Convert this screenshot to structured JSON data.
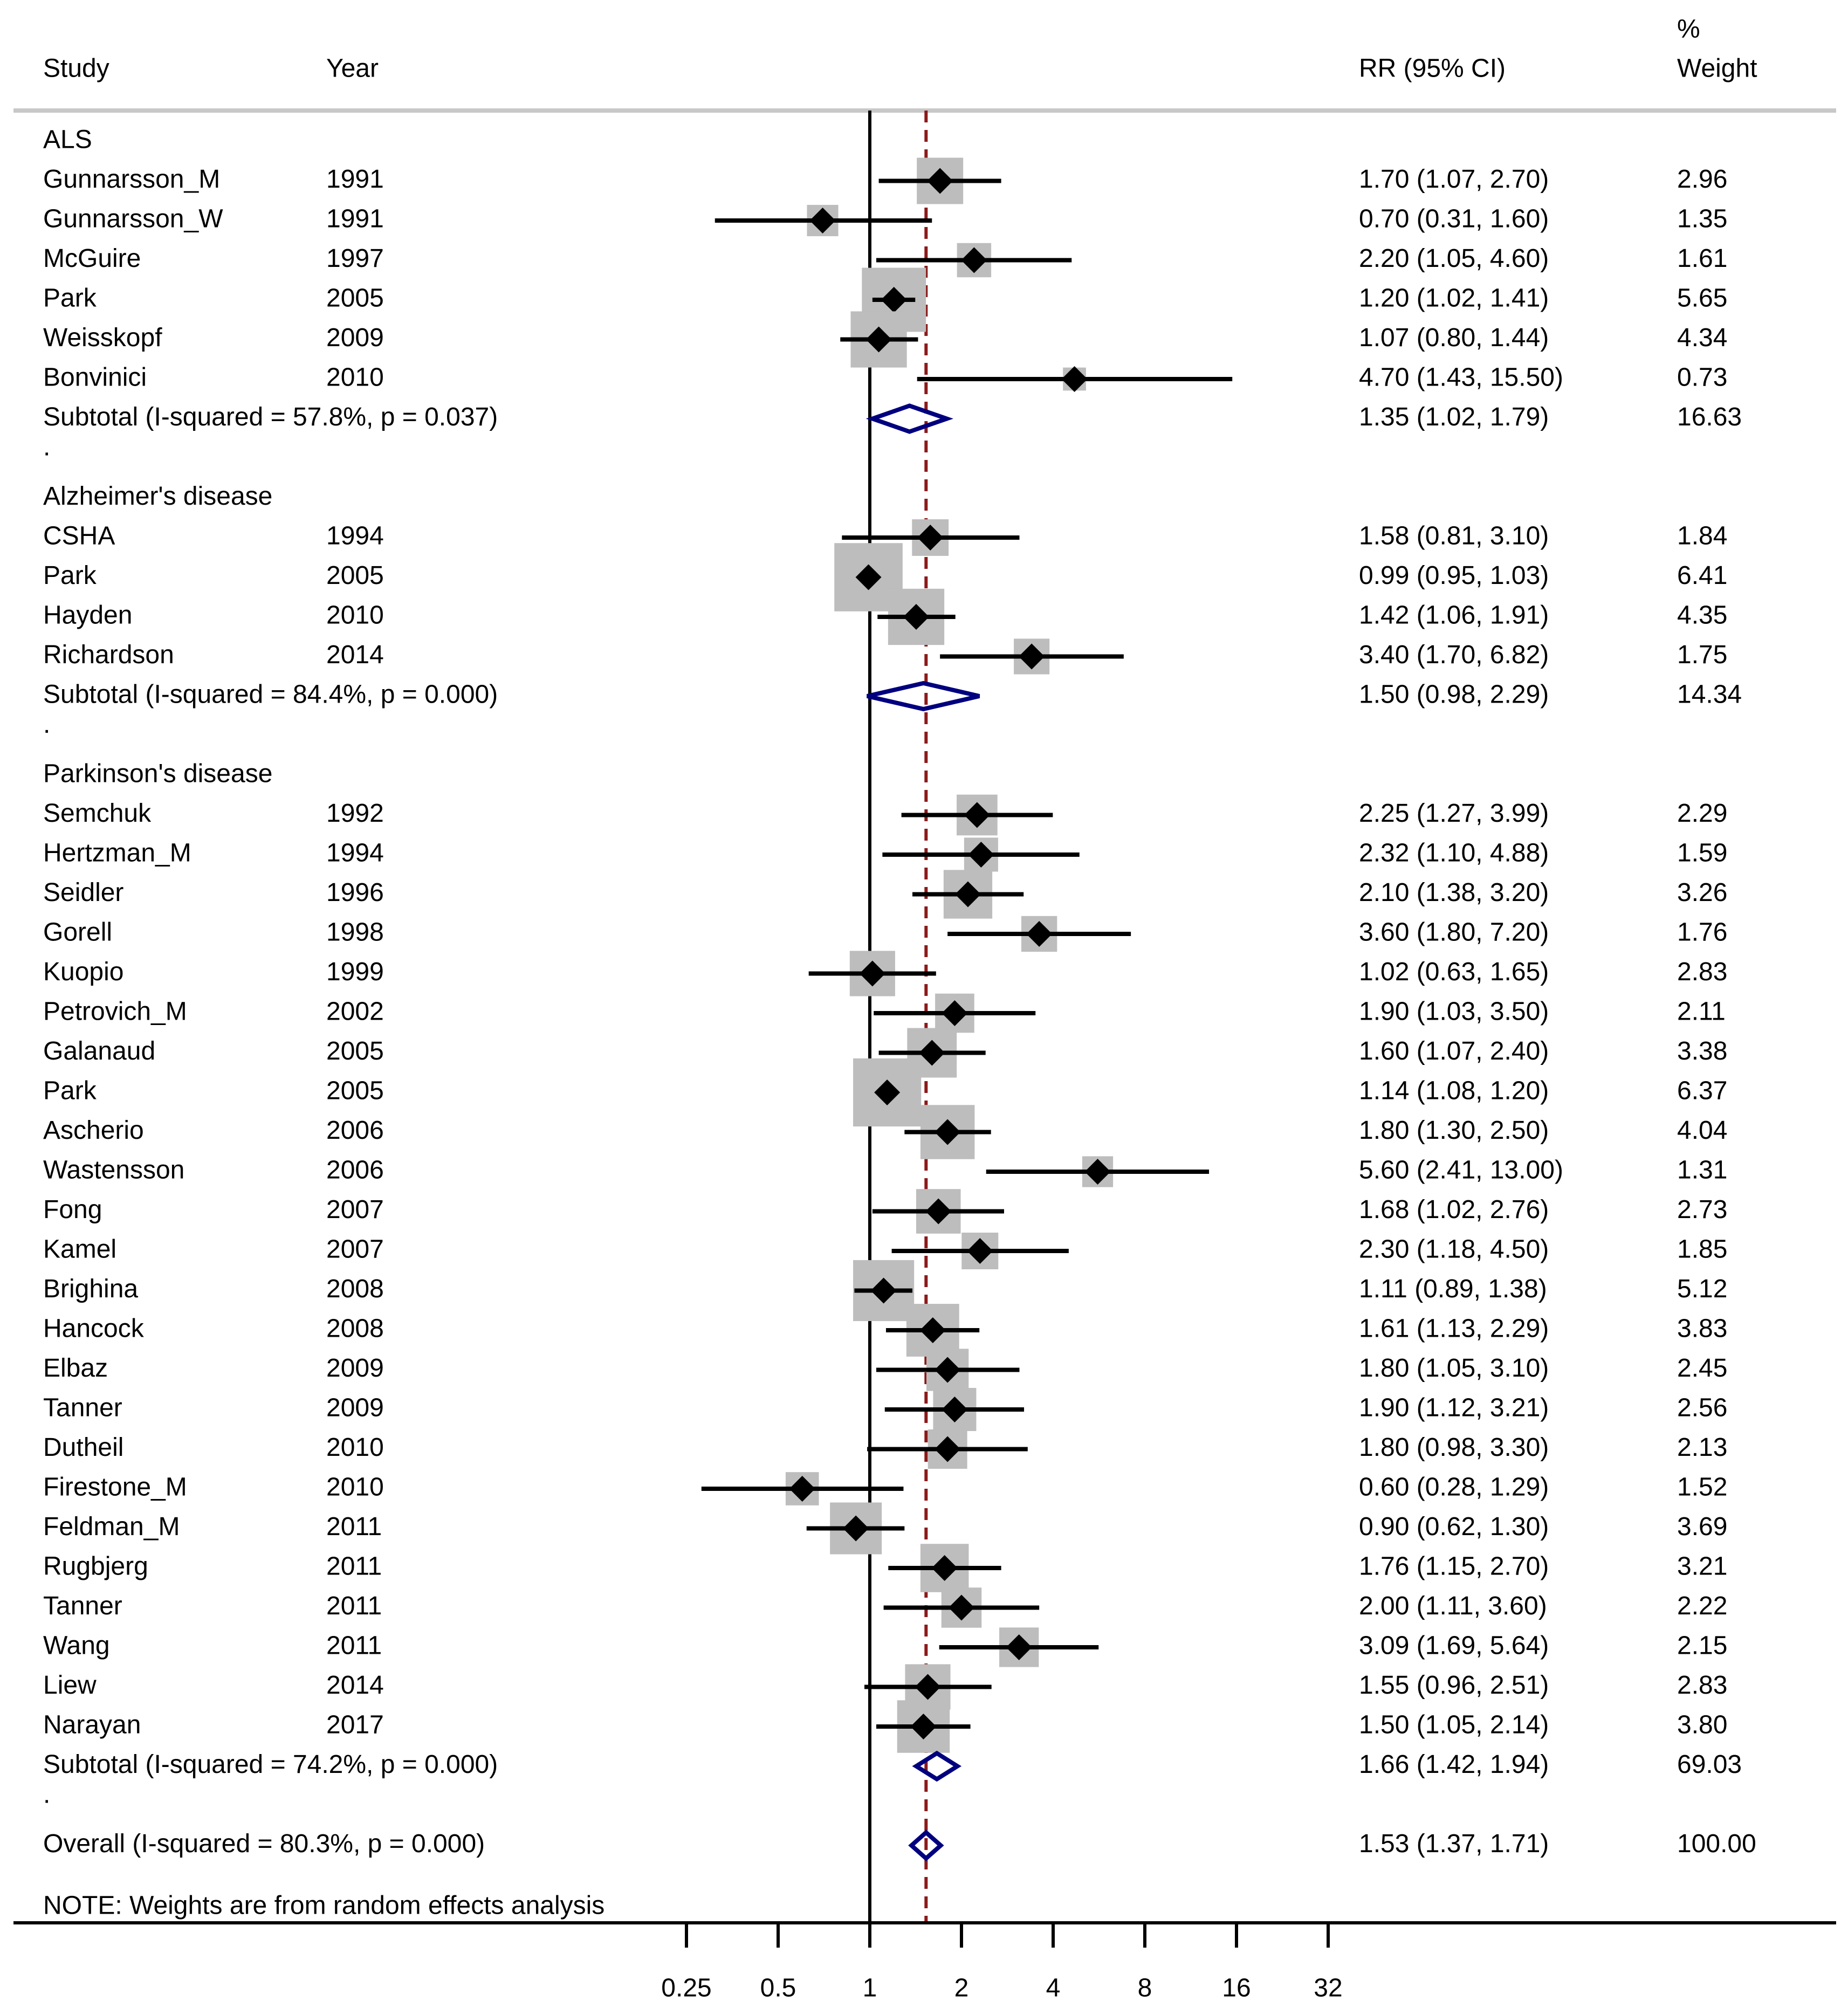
{
  "chart_data": {
    "type": "forest",
    "x_scale": "log2",
    "x_ticks": [
      0.25,
      0.5,
      1,
      2,
      4,
      8,
      16,
      32
    ],
    "x_tick_labels": [
      "0.25",
      "0.5",
      "1",
      "2",
      "4",
      "8",
      "16",
      "32"
    ],
    "null_line": 1,
    "overall_line": 1.53,
    "headers": {
      "study": "Study",
      "year": "Year",
      "rr": "RR (95% CI)",
      "weight_top": "%",
      "weight_bottom": "Weight"
    },
    "rows": [
      {
        "kind": "group",
        "label": "ALS"
      },
      {
        "kind": "study",
        "study": "Gunnarsson_M",
        "year": "1991",
        "rr": 1.7,
        "lo": 1.07,
        "hi": 2.7,
        "ci_text": "1.70 (1.07, 2.70)",
        "weight": 2.96,
        "weight_text": "2.96"
      },
      {
        "kind": "study",
        "study": "Gunnarsson_W",
        "year": "1991",
        "rr": 0.7,
        "lo": 0.31,
        "hi": 1.6,
        "ci_text": "0.70 (0.31, 1.60)",
        "weight": 1.35,
        "weight_text": "1.35"
      },
      {
        "kind": "study",
        "study": "McGuire",
        "year": "1997",
        "rr": 2.2,
        "lo": 1.05,
        "hi": 4.6,
        "ci_text": "2.20 (1.05, 4.60)",
        "weight": 1.61,
        "weight_text": "1.61"
      },
      {
        "kind": "study",
        "study": "Park",
        "year": "2005",
        "rr": 1.2,
        "lo": 1.02,
        "hi": 1.41,
        "ci_text": "1.20 (1.02, 1.41)",
        "weight": 5.65,
        "weight_text": "5.65"
      },
      {
        "kind": "study",
        "study": "Weisskopf",
        "year": "2009",
        "rr": 1.07,
        "lo": 0.8,
        "hi": 1.44,
        "ci_text": "1.07 (0.80, 1.44)",
        "weight": 4.34,
        "weight_text": "4.34"
      },
      {
        "kind": "study",
        "study": "Bonvinici",
        "year": "2010",
        "rr": 4.7,
        "lo": 1.43,
        "hi": 15.5,
        "ci_text": "4.70 (1.43, 15.50)",
        "weight": 0.73,
        "weight_text": "0.73"
      },
      {
        "kind": "subtotal",
        "study": "Subtotal  (I-squared = 57.8%, p = 0.037)",
        "rr": 1.35,
        "lo": 1.02,
        "hi": 1.79,
        "ci_text": "1.35 (1.02, 1.79)",
        "weight_text": "16.63"
      },
      {
        "kind": "spacer",
        "label": "."
      },
      {
        "kind": "group",
        "label": "Alzheimer's disease"
      },
      {
        "kind": "study",
        "study": "CSHA",
        "year": "1994",
        "rr": 1.58,
        "lo": 0.81,
        "hi": 3.1,
        "ci_text": "1.58 (0.81, 3.10)",
        "weight": 1.84,
        "weight_text": "1.84"
      },
      {
        "kind": "study",
        "study": "Park",
        "year": "2005",
        "rr": 0.99,
        "lo": 0.95,
        "hi": 1.03,
        "ci_text": "0.99 (0.95, 1.03)",
        "weight": 6.41,
        "weight_text": "6.41"
      },
      {
        "kind": "study",
        "study": "Hayden",
        "year": "2010",
        "rr": 1.42,
        "lo": 1.06,
        "hi": 1.91,
        "ci_text": "1.42 (1.06, 1.91)",
        "weight": 4.35,
        "weight_text": "4.35"
      },
      {
        "kind": "study",
        "study": "Richardson",
        "year": "2014",
        "rr": 3.4,
        "lo": 1.7,
        "hi": 6.82,
        "ci_text": "3.40 (1.70, 6.82)",
        "weight": 1.75,
        "weight_text": "1.75"
      },
      {
        "kind": "subtotal",
        "study": "Subtotal  (I-squared = 84.4%, p = 0.000)",
        "rr": 1.5,
        "lo": 0.98,
        "hi": 2.29,
        "ci_text": "1.50 (0.98, 2.29)",
        "weight_text": "14.34"
      },
      {
        "kind": "spacer",
        "label": "."
      },
      {
        "kind": "group",
        "label": "Parkinson's disease"
      },
      {
        "kind": "study",
        "study": "Semchuk",
        "year": "1992",
        "rr": 2.25,
        "lo": 1.27,
        "hi": 3.99,
        "ci_text": "2.25 (1.27, 3.99)",
        "weight": 2.29,
        "weight_text": "2.29"
      },
      {
        "kind": "study",
        "study": "Hertzman_M",
        "year": "1994",
        "rr": 2.32,
        "lo": 1.1,
        "hi": 4.88,
        "ci_text": "2.32 (1.10, 4.88)",
        "weight": 1.59,
        "weight_text": "1.59"
      },
      {
        "kind": "study",
        "study": "Seidler",
        "year": "1996",
        "rr": 2.1,
        "lo": 1.38,
        "hi": 3.2,
        "ci_text": "2.10 (1.38, 3.20)",
        "weight": 3.26,
        "weight_text": "3.26"
      },
      {
        "kind": "study",
        "study": "Gorell",
        "year": "1998",
        "rr": 3.6,
        "lo": 1.8,
        "hi": 7.2,
        "ci_text": "3.60 (1.80, 7.20)",
        "weight": 1.76,
        "weight_text": "1.76"
      },
      {
        "kind": "study",
        "study": "Kuopio",
        "year": "1999",
        "rr": 1.02,
        "lo": 0.63,
        "hi": 1.65,
        "ci_text": "1.02 (0.63, 1.65)",
        "weight": 2.83,
        "weight_text": "2.83"
      },
      {
        "kind": "study",
        "study": "Petrovich_M",
        "year": "2002",
        "rr": 1.9,
        "lo": 1.03,
        "hi": 3.5,
        "ci_text": "1.90 (1.03, 3.50)",
        "weight": 2.11,
        "weight_text": "2.11"
      },
      {
        "kind": "study",
        "study": "Galanaud",
        "year": "2005",
        "rr": 1.6,
        "lo": 1.07,
        "hi": 2.4,
        "ci_text": "1.60 (1.07, 2.40)",
        "weight": 3.38,
        "weight_text": "3.38"
      },
      {
        "kind": "study",
        "study": "Park",
        "year": "2005",
        "rr": 1.14,
        "lo": 1.08,
        "hi": 1.2,
        "ci_text": "1.14 (1.08, 1.20)",
        "weight": 6.37,
        "weight_text": "6.37"
      },
      {
        "kind": "study",
        "study": "Ascherio",
        "year": "2006",
        "rr": 1.8,
        "lo": 1.3,
        "hi": 2.5,
        "ci_text": "1.80 (1.30, 2.50)",
        "weight": 4.04,
        "weight_text": "4.04"
      },
      {
        "kind": "study",
        "study": "Wastensson",
        "year": "2006",
        "rr": 5.6,
        "lo": 2.41,
        "hi": 13.0,
        "ci_text": "5.60 (2.41, 13.00)",
        "weight": 1.31,
        "weight_text": "1.31"
      },
      {
        "kind": "study",
        "study": "Fong",
        "year": "2007",
        "rr": 1.68,
        "lo": 1.02,
        "hi": 2.76,
        "ci_text": "1.68 (1.02, 2.76)",
        "weight": 2.73,
        "weight_text": "2.73"
      },
      {
        "kind": "study",
        "study": "Kamel",
        "year": "2007",
        "rr": 2.3,
        "lo": 1.18,
        "hi": 4.5,
        "ci_text": "2.30 (1.18, 4.50)",
        "weight": 1.85,
        "weight_text": "1.85"
      },
      {
        "kind": "study",
        "study": "Brighina",
        "year": "2008",
        "rr": 1.11,
        "lo": 0.89,
        "hi": 1.38,
        "ci_text": "1.11 (0.89, 1.38)",
        "weight": 5.12,
        "weight_text": "5.12"
      },
      {
        "kind": "study",
        "study": "Hancock",
        "year": "2008",
        "rr": 1.61,
        "lo": 1.13,
        "hi": 2.29,
        "ci_text": "1.61 (1.13, 2.29)",
        "weight": 3.83,
        "weight_text": "3.83"
      },
      {
        "kind": "study",
        "study": "Elbaz",
        "year": "2009",
        "rr": 1.8,
        "lo": 1.05,
        "hi": 3.1,
        "ci_text": "1.80 (1.05, 3.10)",
        "weight": 2.45,
        "weight_text": "2.45"
      },
      {
        "kind": "study",
        "study": "Tanner",
        "year": "2009",
        "rr": 1.9,
        "lo": 1.12,
        "hi": 3.21,
        "ci_text": "1.90 (1.12, 3.21)",
        "weight": 2.56,
        "weight_text": "2.56"
      },
      {
        "kind": "study",
        "study": "Dutheil",
        "year": "2010",
        "rr": 1.8,
        "lo": 0.98,
        "hi": 3.3,
        "ci_text": "1.80 (0.98, 3.30)",
        "weight": 2.13,
        "weight_text": "2.13"
      },
      {
        "kind": "study",
        "study": "Firestone_M",
        "year": "2010",
        "rr": 0.6,
        "lo": 0.28,
        "hi": 1.29,
        "ci_text": "0.60 (0.28, 1.29)",
        "weight": 1.52,
        "weight_text": "1.52"
      },
      {
        "kind": "study",
        "study": "Feldman_M",
        "year": "2011",
        "rr": 0.9,
        "lo": 0.62,
        "hi": 1.3,
        "ci_text": "0.90 (0.62, 1.30)",
        "weight": 3.69,
        "weight_text": "3.69"
      },
      {
        "kind": "study",
        "study": "Rugbjerg",
        "year": "2011",
        "rr": 1.76,
        "lo": 1.15,
        "hi": 2.7,
        "ci_text": "1.76 (1.15, 2.70)",
        "weight": 3.21,
        "weight_text": "3.21"
      },
      {
        "kind": "study",
        "study": "Tanner",
        "year": "2011",
        "rr": 2.0,
        "lo": 1.11,
        "hi": 3.6,
        "ci_text": "2.00 (1.11, 3.60)",
        "weight": 2.22,
        "weight_text": "2.22"
      },
      {
        "kind": "study",
        "study": "Wang",
        "year": "2011",
        "rr": 3.09,
        "lo": 1.69,
        "hi": 5.64,
        "ci_text": "3.09 (1.69, 5.64)",
        "weight": 2.15,
        "weight_text": "2.15"
      },
      {
        "kind": "study",
        "study": "Liew",
        "year": "2014",
        "rr": 1.55,
        "lo": 0.96,
        "hi": 2.51,
        "ci_text": "1.55 (0.96, 2.51)",
        "weight": 2.83,
        "weight_text": "2.83"
      },
      {
        "kind": "study",
        "study": "Narayan",
        "year": "2017",
        "rr": 1.5,
        "lo": 1.05,
        "hi": 2.14,
        "ci_text": "1.50 (1.05, 2.14)",
        "weight": 3.8,
        "weight_text": "3.80"
      },
      {
        "kind": "subtotal",
        "study": "Subtotal  (I-squared = 74.2%, p = 0.000)",
        "rr": 1.66,
        "lo": 1.42,
        "hi": 1.94,
        "ci_text": "1.66 (1.42, 1.94)",
        "weight_text": "69.03"
      },
      {
        "kind": "spacer",
        "label": "."
      },
      {
        "kind": "overall",
        "study": "Overall  (I-squared = 80.3%, p = 0.000)",
        "rr": 1.53,
        "lo": 1.37,
        "hi": 1.71,
        "ci_text": "1.53 (1.37, 1.71)",
        "weight_text": "100.00"
      }
    ],
    "note": "NOTE: Weights are from random effects analysis",
    "colors": {
      "point": "#000000",
      "weight_box": "#bdbdbd",
      "ci_line": "#000000",
      "diamond": "#00007f",
      "overall_line": "#8b1a1a",
      "header_rule": "#c8c8c8"
    }
  }
}
